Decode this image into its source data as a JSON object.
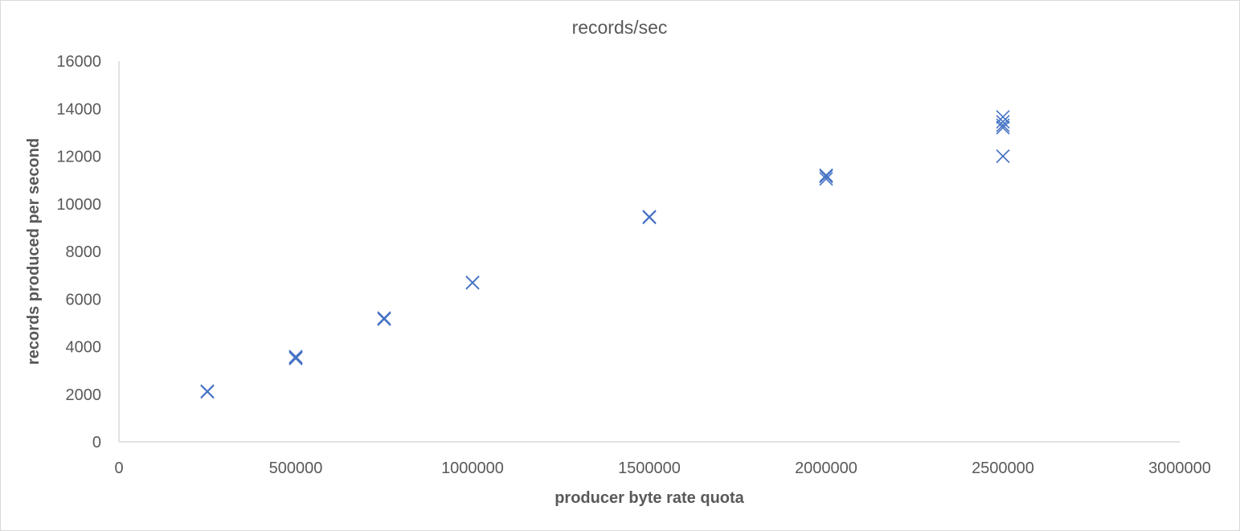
{
  "chart_data": {
    "type": "scatter",
    "title": "records/sec",
    "xlabel": "producer byte rate quota",
    "ylabel": "records produced per second",
    "xlim": [
      0,
      3000000
    ],
    "ylim": [
      0,
      16000
    ],
    "x_ticks": [
      0,
      500000,
      1000000,
      1500000,
      2000000,
      2500000,
      3000000
    ],
    "x_tick_labels": [
      "0",
      "500000",
      "1000000",
      "1500000",
      "2000000",
      "2500000",
      "3000000"
    ],
    "y_ticks": [
      0,
      2000,
      4000,
      6000,
      8000,
      10000,
      12000,
      14000,
      16000
    ],
    "y_tick_labels": [
      "0",
      "2000",
      "4000",
      "6000",
      "8000",
      "10000",
      "12000",
      "14000",
      "16000"
    ],
    "grid": false,
    "marker": "x",
    "series": [
      {
        "color": "#4472c4",
        "points": [
          {
            "x": 250000,
            "y": 2100
          },
          {
            "x": 250000,
            "y": 2130
          },
          {
            "x": 500000,
            "y": 3500
          },
          {
            "x": 500000,
            "y": 3580
          },
          {
            "x": 500000,
            "y": 3540
          },
          {
            "x": 750000,
            "y": 5150
          },
          {
            "x": 750000,
            "y": 5200
          },
          {
            "x": 1000000,
            "y": 6680
          },
          {
            "x": 1000000,
            "y": 6700
          },
          {
            "x": 1500000,
            "y": 9430
          },
          {
            "x": 1500000,
            "y": 9460
          },
          {
            "x": 2000000,
            "y": 11050
          },
          {
            "x": 2000000,
            "y": 11150
          },
          {
            "x": 2000000,
            "y": 11200
          },
          {
            "x": 2500000,
            "y": 12000
          },
          {
            "x": 2500000,
            "y": 13200
          },
          {
            "x": 2500000,
            "y": 13300
          },
          {
            "x": 2500000,
            "y": 13450
          },
          {
            "x": 2500000,
            "y": 13650
          }
        ]
      }
    ]
  }
}
